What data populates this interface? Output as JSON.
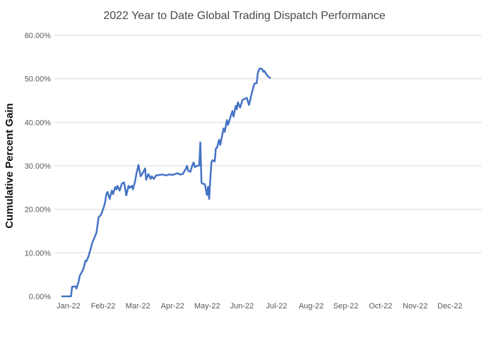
{
  "chart_data": {
    "type": "line",
    "title": "2022 Year to Date Global Trading Dispatch Performance",
    "ylabel": "Cumulative Percent Gain",
    "xlabel": "",
    "legend": "none",
    "grid": "horizontal",
    "ylim": [
      0,
      60
    ],
    "y_tick_labels": [
      "0.00%",
      "10.00%",
      "20.00%",
      "30.00%",
      "40.00%",
      "50.00%",
      "60.00%"
    ],
    "y_tick_values": [
      0,
      10,
      20,
      30,
      40,
      50,
      60
    ],
    "x_tick_labels": [
      "Jan-22",
      "Feb-22",
      "Mar-22",
      "Apr-22",
      "May-22",
      "Jun-22",
      "Jul-22",
      "Aug-22",
      "Sep-22",
      "Oct-22",
      "Nov-22",
      "Dec-22"
    ],
    "colors": {
      "line": "#4472C4",
      "gridline": "#D9D9D9",
      "tick_label": "#595959",
      "title": "#484848",
      "axis_title": "#111111",
      "background": "#ffffff"
    },
    "series": [
      {
        "name": "Cumulative Percent Gain",
        "x_unit": "day-of-year-2022",
        "y_unit": "percent",
        "points": [
          [
            0,
            0
          ],
          [
            8,
            0
          ],
          [
            9,
            2.2
          ],
          [
            12,
            2.3
          ],
          [
            13,
            1.8
          ],
          [
            15,
            3.5
          ],
          [
            16,
            4.8
          ],
          [
            17,
            5.2
          ],
          [
            19,
            6.2
          ],
          [
            20,
            7.0
          ],
          [
            21,
            8.2
          ],
          [
            22,
            8.1
          ],
          [
            24,
            9.3
          ],
          [
            25,
            10.3
          ],
          [
            26,
            11.1
          ],
          [
            27,
            12.2
          ],
          [
            31,
            14.6
          ],
          [
            33,
            18.2
          ],
          [
            35,
            18.7
          ],
          [
            36,
            19.3
          ],
          [
            38,
            20.8
          ],
          [
            39,
            21.8
          ],
          [
            40,
            23.5
          ],
          [
            41,
            24.0
          ],
          [
            43,
            22.4
          ],
          [
            45,
            24.3
          ],
          [
            46,
            23.5
          ],
          [
            48,
            25.1
          ],
          [
            49,
            24.6
          ],
          [
            50,
            25.4
          ],
          [
            52,
            24.3
          ],
          [
            54,
            25.9
          ],
          [
            56,
            26.2
          ],
          [
            58,
            23.2
          ],
          [
            60,
            25.4
          ],
          [
            61,
            24.9
          ],
          [
            63,
            25.4
          ],
          [
            64,
            24.6
          ],
          [
            66,
            26.5
          ],
          [
            67,
            28.0
          ],
          [
            69,
            30.2
          ],
          [
            71,
            27.6
          ],
          [
            73,
            28.4
          ],
          [
            75,
            29.4
          ],
          [
            76,
            26.8
          ],
          [
            78,
            28.1
          ],
          [
            80,
            27.0
          ],
          [
            81,
            27.6
          ],
          [
            83,
            27.0
          ],
          [
            85,
            27.8
          ],
          [
            88,
            27.9
          ],
          [
            91,
            28.0
          ],
          [
            94,
            27.8
          ],
          [
            97,
            28.0
          ],
          [
            100,
            27.9
          ],
          [
            104,
            28.3
          ],
          [
            107,
            28.0
          ],
          [
            109,
            28.1
          ],
          [
            112,
            29.4
          ],
          [
            113,
            30.0
          ],
          [
            114,
            28.9
          ],
          [
            116,
            28.6
          ],
          [
            118,
            30.3
          ],
          [
            119,
            30.8
          ],
          [
            120,
            29.7
          ],
          [
            122,
            30.0
          ],
          [
            124,
            30.1
          ],
          [
            125,
            35.4
          ],
          [
            126,
            26.2
          ],
          [
            127,
            25.9
          ],
          [
            129,
            25.8
          ],
          [
            131,
            23.3
          ],
          [
            132,
            25.2
          ],
          [
            133,
            22.4
          ],
          [
            134,
            27.0
          ],
          [
            135,
            30.8
          ],
          [
            136,
            31.3
          ],
          [
            138,
            31.0
          ],
          [
            139,
            34.0
          ],
          [
            140,
            34.1
          ],
          [
            142,
            36.0
          ],
          [
            143,
            34.8
          ],
          [
            145,
            37.3
          ],
          [
            146,
            38.6
          ],
          [
            147,
            37.8
          ],
          [
            149,
            40.5
          ],
          [
            150,
            39.4
          ],
          [
            153,
            41.8
          ],
          [
            154,
            42.6
          ],
          [
            155,
            41.3
          ],
          [
            157,
            43.8
          ],
          [
            158,
            43.0
          ],
          [
            159,
            44.6
          ],
          [
            161,
            43.4
          ],
          [
            163,
            45.1
          ],
          [
            165,
            45.4
          ],
          [
            167,
            45.6
          ],
          [
            168,
            44.8
          ],
          [
            169,
            44.0
          ],
          [
            171,
            46.1
          ],
          [
            173,
            48.1
          ],
          [
            174,
            48.9
          ],
          [
            176,
            49.0
          ],
          [
            177,
            51.3
          ],
          [
            178,
            52.1
          ],
          [
            179,
            52.4
          ],
          [
            181,
            52.2
          ],
          [
            182,
            51.6
          ],
          [
            183,
            51.8
          ],
          [
            184,
            51.3
          ],
          [
            186,
            50.6
          ],
          [
            188,
            50.2
          ]
        ]
      }
    ]
  }
}
